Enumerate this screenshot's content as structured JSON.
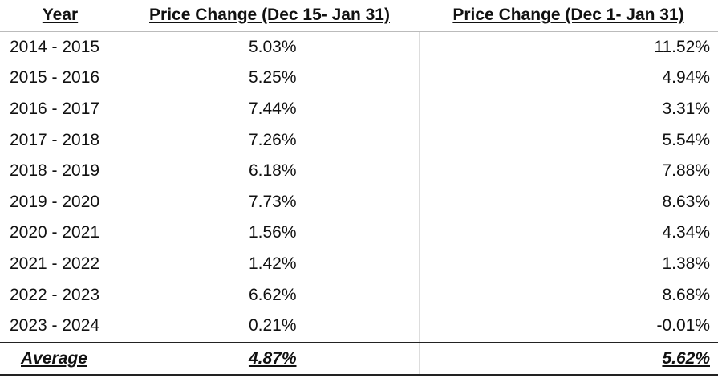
{
  "table": {
    "header": [
      "Year",
      "Price Change (Dec 15- Jan 31)",
      "Price Change (Dec 1- Jan 31)"
    ],
    "rows": [
      [
        "2014 - 2015",
        "5.03%",
        "11.52%"
      ],
      [
        "2015 - 2016",
        "5.25%",
        "4.94%"
      ],
      [
        "2016 - 2017",
        "7.44%",
        "3.31%"
      ],
      [
        "2017 - 2018",
        "7.26%",
        "5.54%"
      ],
      [
        "2018 - 2019",
        "6.18%",
        "7.88%"
      ],
      [
        "2019 - 2020",
        "7.73%",
        "8.63%"
      ],
      [
        "2020 - 2021",
        "1.56%",
        "4.34%"
      ],
      [
        "2021 - 2022",
        "1.42%",
        "1.38%"
      ],
      [
        "2022 - 2023",
        "6.62%",
        "8.68%"
      ],
      [
        "2023 - 2024",
        "0.21%",
        "-0.01%"
      ]
    ],
    "footer": [
      "Average",
      "4.87%",
      "5.62%"
    ]
  }
}
